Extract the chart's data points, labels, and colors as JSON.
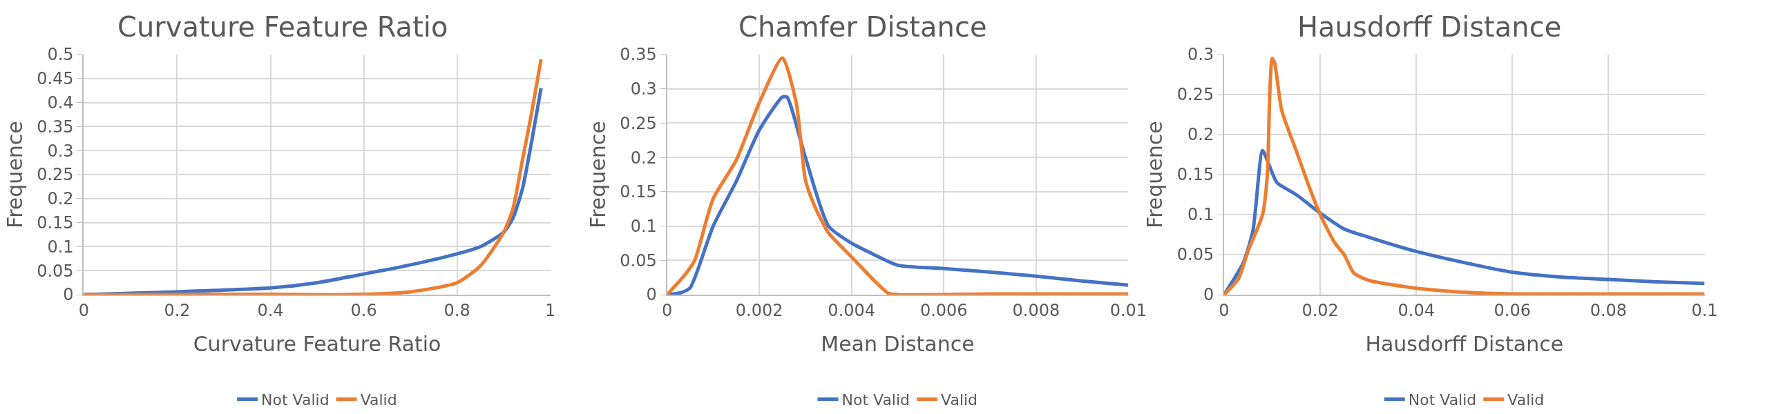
{
  "chart_data": [
    {
      "type": "line",
      "title": "Curvature Feature Ratio",
      "xlabel": "Curvature Feature Ratio",
      "ylabel": "Frequence",
      "xlim": [
        0,
        1
      ],
      "xticks": [
        0,
        0.2,
        0.4,
        0.6,
        0.8,
        1
      ],
      "ylim": [
        0,
        0.5
      ],
      "yticks": [
        0,
        0.05,
        0.1,
        0.15,
        0.2,
        0.25,
        0.3,
        0.35,
        0.4,
        0.45,
        0.5
      ],
      "grid": true,
      "legend": "bottom",
      "series": [
        {
          "name": "Not Valid",
          "color": "#4472c4",
          "x": [
            0,
            0.2,
            0.4,
            0.5,
            0.6,
            0.7,
            0.8,
            0.85,
            0.9,
            0.92,
            0.94,
            0.96,
            0.98
          ],
          "values": [
            0,
            0.006,
            0.014,
            0.025,
            0.043,
            0.062,
            0.085,
            0.1,
            0.13,
            0.16,
            0.22,
            0.32,
            0.43
          ]
        },
        {
          "name": "Valid",
          "color": "#ed7d31",
          "x": [
            0,
            0.4,
            0.55,
            0.7,
            0.8,
            0.85,
            0.9,
            0.92,
            0.94,
            0.96,
            0.98
          ],
          "values": [
            0,
            0.001,
            0,
            0.006,
            0.025,
            0.06,
            0.13,
            0.18,
            0.28,
            0.38,
            0.49
          ]
        }
      ]
    },
    {
      "type": "line",
      "title": "Chamfer Distance",
      "xlabel": "Mean Distance",
      "ylabel": "Frequence",
      "xlim": [
        0,
        0.01
      ],
      "xticks": [
        0,
        0.002,
        0.004,
        0.006,
        0.008,
        0.01
      ],
      "ylim": [
        0,
        0.35
      ],
      "yticks": [
        0,
        0.05,
        0.1,
        0.15,
        0.2,
        0.25,
        0.3,
        0.35
      ],
      "grid": true,
      "legend": "bottom",
      "series": [
        {
          "name": "Not Valid",
          "color": "#4472c4",
          "x": [
            0,
            0.0003,
            0.0005,
            0.001,
            0.0015,
            0.002,
            0.0025,
            0.0026,
            0.003,
            0.0035,
            0.004,
            0.0045,
            0.005,
            0.006,
            0.007,
            0.008,
            0.009,
            0.01
          ],
          "values": [
            0,
            0.003,
            0.01,
            0.1,
            0.165,
            0.24,
            0.288,
            0.288,
            0.2,
            0.1,
            0.075,
            0.058,
            0.043,
            0.038,
            0.033,
            0.027,
            0.02,
            0.014
          ]
        },
        {
          "name": "Valid",
          "color": "#ed7d31",
          "x": [
            0,
            0.0004,
            0.0006,
            0.001,
            0.0015,
            0.002,
            0.0025,
            0.0028,
            0.003,
            0.0032,
            0.0035,
            0.004,
            0.0045,
            0.0048,
            0.005,
            0.007,
            0.01
          ],
          "values": [
            0,
            0.03,
            0.05,
            0.14,
            0.196,
            0.28,
            0.345,
            0.28,
            0.167,
            0.129,
            0.09,
            0.055,
            0.02,
            0.002,
            0,
            0.001,
            0.001
          ]
        }
      ]
    },
    {
      "type": "line",
      "title": "Hausdorff Distance",
      "xlabel": "Hausdorff Distance",
      "ylabel": "Frequence",
      "xlim": [
        0,
        0.1
      ],
      "xticks": [
        0,
        0.02,
        0.04,
        0.06,
        0.08,
        0.1
      ],
      "ylim": [
        0,
        0.3
      ],
      "yticks": [
        0,
        0.05,
        0.1,
        0.15,
        0.2,
        0.25,
        0.3
      ],
      "grid": true,
      "legend": "bottom",
      "series": [
        {
          "name": "Not Valid",
          "color": "#4472c4",
          "x": [
            0,
            0.004,
            0.006,
            0.008,
            0.0095,
            0.011,
            0.015,
            0.02,
            0.025,
            0.03,
            0.04,
            0.05,
            0.06,
            0.07,
            0.08,
            0.09,
            0.1
          ],
          "values": [
            0,
            0.04,
            0.08,
            0.18,
            0.16,
            0.14,
            0.125,
            0.102,
            0.082,
            0.072,
            0.054,
            0.04,
            0.028,
            0.022,
            0.019,
            0.016,
            0.014
          ]
        },
        {
          "name": "Valid",
          "color": "#ed7d31",
          "x": [
            0,
            0.003,
            0.005,
            0.008,
            0.009,
            0.0095,
            0.01,
            0.0105,
            0.012,
            0.015,
            0.018,
            0.02,
            0.023,
            0.025,
            0.027,
            0.03,
            0.04,
            0.05,
            0.06,
            0.1
          ],
          "values": [
            0,
            0.02,
            0.055,
            0.1,
            0.15,
            0.25,
            0.295,
            0.29,
            0.23,
            0.18,
            0.13,
            0.1,
            0.065,
            0.05,
            0.027,
            0.018,
            0.008,
            0.003,
            0.001,
            0.001
          ]
        }
      ]
    }
  ]
}
